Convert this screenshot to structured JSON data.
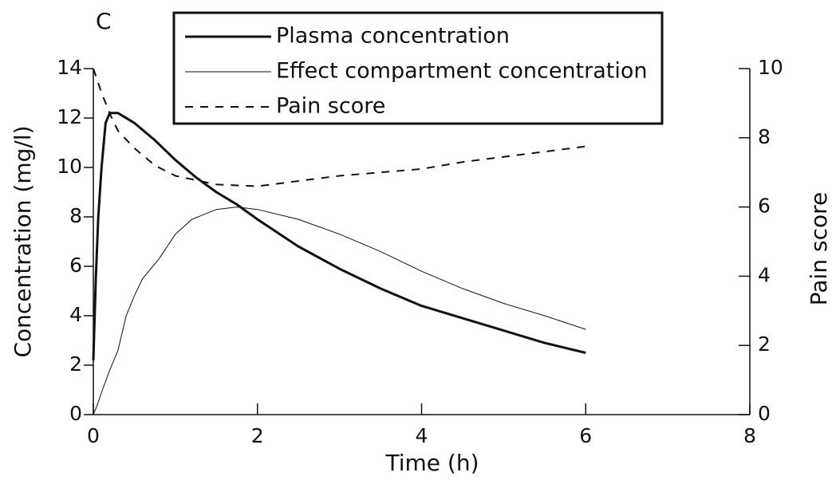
{
  "chart_data": {
    "type": "line",
    "panel_label": "C",
    "x_label": "Time (h)",
    "y_label": "Concentration (mg/l)",
    "y2_label": "Pain score",
    "xlim": [
      0,
      8
    ],
    "xticks": [
      0,
      2,
      4,
      6,
      8
    ],
    "ylim": [
      0,
      14
    ],
    "yticks": [
      0,
      2,
      4,
      6,
      8,
      10,
      12,
      14
    ],
    "y2lim": [
      0,
      10
    ],
    "y2ticks": [
      0,
      2,
      4,
      6,
      8,
      10
    ],
    "series": [
      {
        "name": "Plasma concentration",
        "color": "#111111",
        "style": "thick",
        "x": [
          0,
          0.03,
          0.06,
          0.1,
          0.15,
          0.2,
          0.3,
          0.5,
          0.75,
          1,
          1.25,
          1.5,
          1.75,
          2,
          2.5,
          3,
          3.5,
          4,
          4.5,
          5,
          5.5,
          6
        ],
        "values": [
          2.2,
          5.5,
          8,
          10,
          11.8,
          12.2,
          12.2,
          11.8,
          11.1,
          10.3,
          9.6,
          9,
          8.5,
          7.9,
          6.8,
          5.9,
          5.1,
          4.4,
          3.9,
          3.4,
          2.9,
          2.5
        ]
      },
      {
        "name": "Effect compartment concentration",
        "color": "#111111",
        "style": "thin",
        "x": [
          0,
          0.05,
          0.1,
          0.2,
          0.3,
          0.4,
          0.5,
          0.6,
          0.8,
          1,
          1.2,
          1.5,
          1.75,
          2,
          2.5,
          3,
          3.5,
          4,
          4.5,
          5,
          5.5,
          6
        ],
        "values": [
          0,
          0.4,
          0.9,
          1.8,
          2.6,
          4,
          4.8,
          5.5,
          6.3,
          7.3,
          7.9,
          8.3,
          8.4,
          8.3,
          7.9,
          7.3,
          6.6,
          5.8,
          5.1,
          4.5,
          4,
          3.45
        ]
      },
      {
        "name": "Pain score",
        "color": "#111111",
        "style": "dashed",
        "axis": "y2",
        "x": [
          0,
          0.1,
          0.2,
          0.3,
          0.5,
          0.75,
          1,
          1.5,
          2,
          2.5,
          3,
          3.5,
          4,
          4.5,
          5,
          5.5,
          6
        ],
        "values": [
          10,
          9.3,
          8.7,
          8.2,
          7.7,
          7.2,
          6.9,
          6.65,
          6.6,
          6.75,
          6.9,
          7,
          7.1,
          7.3,
          7.45,
          7.6,
          7.75
        ]
      }
    ]
  }
}
